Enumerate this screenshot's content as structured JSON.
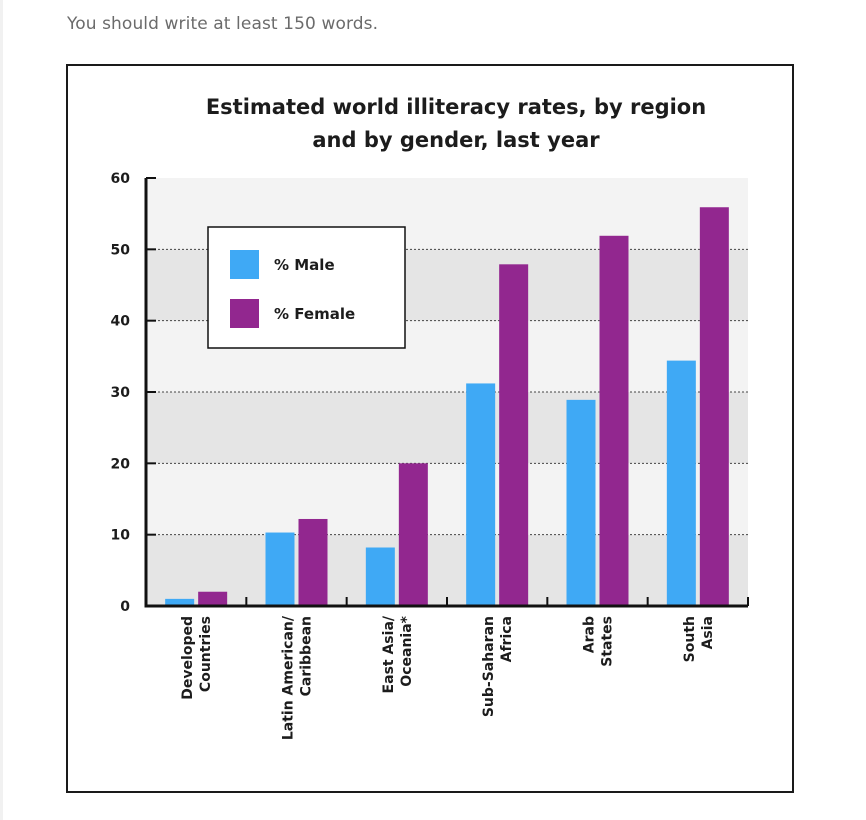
{
  "instruction": "You should write at least 150 words.",
  "chart_data": {
    "type": "bar",
    "title_lines": [
      "Estimated world illiteracy rates, by region",
      "and by gender, last year"
    ],
    "xlabel": "",
    "ylabel": "",
    "ylim": [
      0,
      60
    ],
    "yticks": [
      0,
      10,
      20,
      30,
      40,
      50,
      60
    ],
    "grid": "dotted horizontal",
    "legend_position": "top-left",
    "categories": [
      [
        "Developed",
        "Countries"
      ],
      [
        "Latin American/",
        "Caribbean"
      ],
      [
        "East Asia/",
        "Oceania*"
      ],
      [
        "Sub-Saharan",
        "Africa"
      ],
      [
        "Arab",
        "States"
      ],
      [
        "South",
        "Asia"
      ]
    ],
    "series": [
      {
        "name": "% Male",
        "color": "#3fa9f5",
        "values": [
          1,
          10.3,
          8.2,
          31.2,
          28.9,
          34.4
        ]
      },
      {
        "name": "% Female",
        "color": "#92278f",
        "values": [
          2,
          12.2,
          20,
          47.9,
          51.9,
          55.9
        ]
      }
    ]
  }
}
